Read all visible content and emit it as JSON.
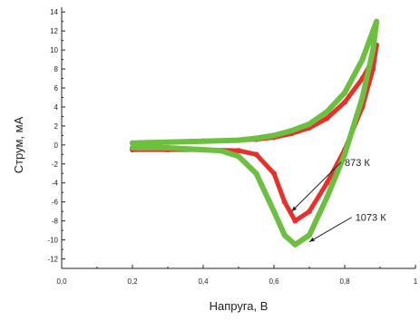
{
  "chart_data": {
    "type": "line",
    "title": "",
    "xlabel": "Напруга, В",
    "ylabel": "Струм, мА",
    "xlim": [
      0.0,
      1.0
    ],
    "ylim": [
      -13,
      14.5
    ],
    "x_ticks": [
      0.0,
      0.2,
      0.4,
      0.6,
      0.8,
      1.0
    ],
    "x_tick_labels": [
      "0,0",
      "0,2",
      "0,4",
      "0,6",
      "0,8",
      "1"
    ],
    "y_ticks": [
      14,
      12,
      10,
      8,
      6,
      4,
      2,
      0,
      -2,
      -4,
      -6,
      -8,
      -10,
      -12
    ],
    "y_tick_labels": [
      "14",
      "12",
      "10",
      "8",
      "6",
      "4",
      "2",
      "0",
      "-2",
      "-4",
      "-6",
      "-8",
      "-10",
      "-12"
    ],
    "grid": false,
    "legend": "none",
    "series": [
      {
        "name": "873 K",
        "color": "#e8302a",
        "x": [
          0.2,
          0.3,
          0.4,
          0.5,
          0.55,
          0.6,
          0.63,
          0.66,
          0.7,
          0.75,
          0.8,
          0.85,
          0.88,
          0.89,
          0.88,
          0.85,
          0.8,
          0.75,
          0.7,
          0.65,
          0.6,
          0.55,
          0.5,
          0.4,
          0.3,
          0.2
        ],
        "y": [
          -0.5,
          -0.5,
          -0.5,
          -0.6,
          -1.0,
          -3.0,
          -6.0,
          -8.0,
          -7.0,
          -4.0,
          -0.5,
          4.0,
          8.0,
          10.5,
          9.0,
          7.0,
          4.5,
          2.8,
          1.8,
          1.2,
          0.8,
          0.6,
          0.5,
          0.4,
          0.3,
          0.2
        ]
      },
      {
        "name": "1073 K",
        "color": "#6cbf3f",
        "x": [
          0.2,
          0.3,
          0.4,
          0.45,
          0.5,
          0.55,
          0.6,
          0.63,
          0.66,
          0.7,
          0.75,
          0.8,
          0.85,
          0.88,
          0.89,
          0.88,
          0.85,
          0.8,
          0.75,
          0.7,
          0.65,
          0.6,
          0.55,
          0.5,
          0.4,
          0.3,
          0.2
        ],
        "y": [
          -0.3,
          -0.3,
          -0.5,
          -0.6,
          -1.2,
          -3.0,
          -7.0,
          -9.5,
          -10.5,
          -9.5,
          -5.5,
          -1.0,
          5.0,
          10.0,
          13.0,
          12.0,
          9.0,
          5.5,
          3.5,
          2.2,
          1.5,
          1.0,
          0.7,
          0.5,
          0.4,
          0.3,
          0.2
        ]
      }
    ],
    "annotations": [
      {
        "text": "873 К",
        "arrow_to": [
          0.65,
          -7.0
        ],
        "label_at": [
          0.8,
          -2.2
        ]
      },
      {
        "text": "1073 К",
        "arrow_to": [
          0.7,
          -10.2
        ],
        "label_at": [
          0.83,
          -8.0
        ]
      }
    ]
  }
}
